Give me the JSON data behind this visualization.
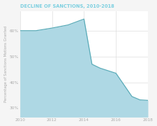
{
  "title": "DECLINE OF SANCTIONS, 2010-2018",
  "title_color": "#7bcfe0",
  "title_fontsize": 4.8,
  "ylabel": "Percentage of Sanctions Motions Granted",
  "ylabel_fontsize": 3.8,
  "ylabel_color": "#aaaaaa",
  "line_color": "#5aabb8",
  "fill_color": "#aed8e4",
  "fill_alpha": 1.0,
  "background_color": "#f5f5f5",
  "plot_bg_color": "#ffffff",
  "grid_color": "#dddddd",
  "tick_color": "#aaaaaa",
  "tick_fontsize": 4.2,
  "years": [
    2010,
    2011,
    2012,
    2013,
    2014,
    2014.5,
    2015,
    2016,
    2017,
    2017.5,
    2018
  ],
  "values": [
    0.6,
    0.6,
    0.61,
    0.622,
    0.645,
    0.47,
    0.455,
    0.435,
    0.345,
    0.332,
    0.33
  ],
  "ylim": [
    0.265,
    0.675
  ],
  "yticks": [
    0.3,
    0.4,
    0.5,
    0.6
  ],
  "ytick_labels": [
    "30%",
    "40%",
    "50%",
    "60%"
  ],
  "xticks": [
    2010,
    2012,
    2014,
    2016,
    2018
  ]
}
